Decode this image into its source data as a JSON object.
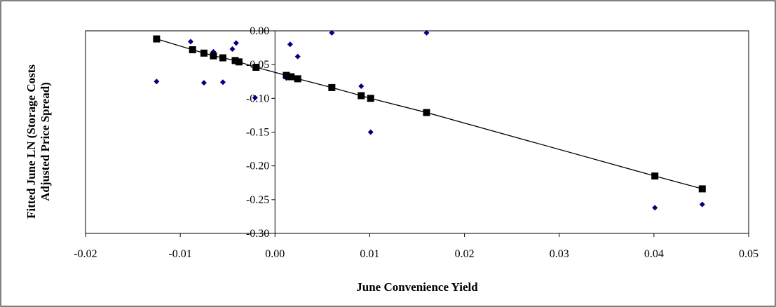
{
  "chart_data": {
    "type": "scatter",
    "xlabel": "June Convenience Yield",
    "ylabel_lines": [
      "Fitted June LN (Storage Costs",
      "Adjusted Price Spread)"
    ],
    "xlim": [
      -0.02,
      0.05
    ],
    "ylim": [
      -0.3,
      0.0
    ],
    "xticks": [
      -0.02,
      -0.01,
      0.0,
      0.01,
      0.02,
      0.03,
      0.04,
      0.05
    ],
    "xtick_labels": [
      "-0.02",
      "-0.01",
      "0.00",
      "0.01",
      "0.02",
      "0.03",
      "0.04",
      "0.05"
    ],
    "yticks": [
      0.0,
      -0.05,
      -0.1,
      -0.15,
      -0.2,
      -0.25,
      -0.3
    ],
    "ytick_labels": [
      "0.00",
      "-0.05",
      "-0.10",
      "-0.15",
      "-0.20",
      "-0.25",
      "-0.30"
    ],
    "grid": false,
    "legend": false,
    "series": [
      {
        "marker": "diamond",
        "color": "#000080",
        "points": [
          [
            -0.0125,
            -0.075
          ],
          [
            -0.0089,
            -0.016
          ],
          [
            -0.0075,
            -0.077
          ],
          [
            -0.0065,
            -0.031
          ],
          [
            -0.0055,
            -0.076
          ],
          [
            -0.0045,
            -0.027
          ],
          [
            -0.0041,
            -0.018
          ],
          [
            -0.0021,
            -0.099
          ],
          [
            0.0012,
            -0.07
          ],
          [
            0.0016,
            -0.02
          ],
          [
            0.0024,
            -0.038
          ],
          [
            0.006,
            -0.003
          ],
          [
            0.0091,
            -0.082
          ],
          [
            0.0101,
            -0.15
          ],
          [
            0.016,
            -0.003
          ],
          [
            0.0401,
            -0.262
          ],
          [
            0.0451,
            -0.257
          ]
        ]
      },
      {
        "marker": "square",
        "color": "#000000",
        "line": true,
        "points": [
          [
            -0.0125,
            -0.012
          ],
          [
            -0.0087,
            -0.028
          ],
          [
            -0.0075,
            -0.033
          ],
          [
            -0.0065,
            -0.037
          ],
          [
            -0.0055,
            -0.04
          ],
          [
            -0.0042,
            -0.044
          ],
          [
            -0.0038,
            -0.046
          ],
          [
            -0.002,
            -0.054
          ],
          [
            0.0012,
            -0.066
          ],
          [
            0.0017,
            -0.068
          ],
          [
            0.0024,
            -0.071
          ],
          [
            0.006,
            -0.084
          ],
          [
            0.0091,
            -0.096
          ],
          [
            0.0101,
            -0.1
          ],
          [
            0.016,
            -0.121
          ],
          [
            0.0401,
            -0.215
          ],
          [
            0.0451,
            -0.234
          ]
        ]
      }
    ]
  }
}
